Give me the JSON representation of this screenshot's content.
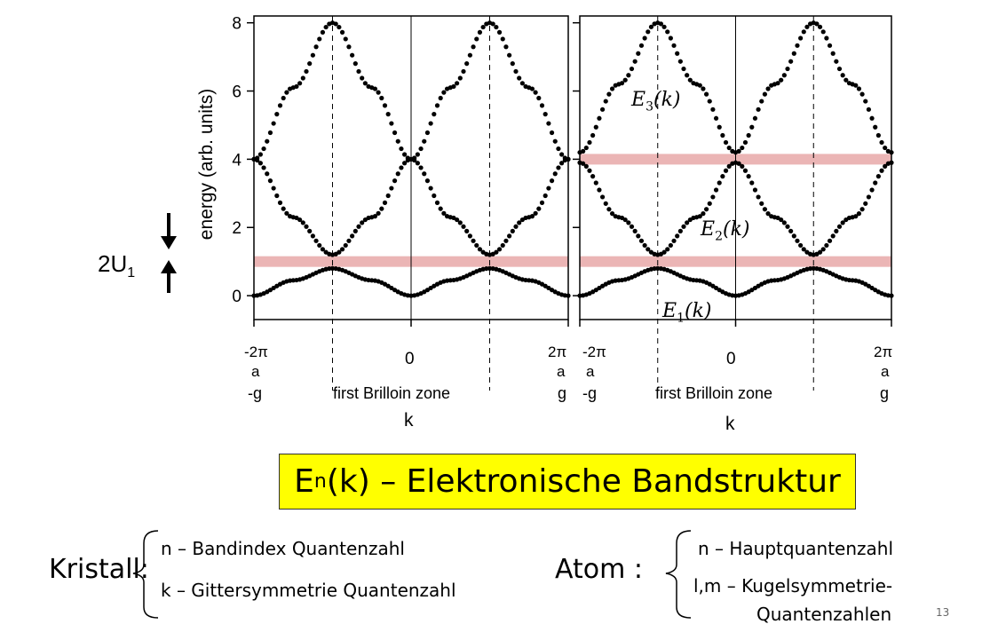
{
  "chart_data": [
    {
      "type": "scatter",
      "panel": "left",
      "ylabel": "energy (arb. units)",
      "xlabel": "k",
      "x_zone_label": "first Brilloin zone",
      "ylim": [
        -0.7,
        8.2
      ],
      "yticks": [
        "0",
        "2",
        "4",
        "6",
        "8"
      ],
      "xticks": [
        {
          "top": "-2π",
          "bottom": "a",
          "extra": "-g"
        },
        {
          "top": "0",
          "bottom": "",
          "extra": ""
        },
        {
          "top": "2π",
          "bottom": "a",
          "extra": "g"
        }
      ],
      "gap_annotation": "2U",
      "gap_annotation_sub": "1",
      "band_gap_highlights": [
        1.0
      ],
      "series": [
        {
          "band": 1,
          "x": [
            -1,
            -0.75,
            -0.5,
            -0.25,
            0,
            0.25,
            0.5,
            0.75,
            1
          ],
          "y": [
            0,
            0.45,
            0.8,
            0.45,
            0,
            0.45,
            0.8,
            0.45,
            0
          ]
        },
        {
          "band": 2,
          "x": [
            -1,
            -0.75,
            -0.5,
            -0.25,
            0,
            0.25,
            0.5,
            0.75,
            1
          ],
          "y": [
            4,
            2.3,
            1.2,
            2.3,
            4,
            2.3,
            1.2,
            2.3,
            4
          ]
        },
        {
          "band": 3,
          "x": [
            -1,
            -0.75,
            -0.5,
            -0.25,
            0,
            0.25,
            0.5,
            0.75,
            1
          ],
          "y": [
            4,
            6.1,
            8,
            6.1,
            4,
            6.1,
            8,
            6.1,
            4
          ]
        }
      ]
    },
    {
      "type": "scatter",
      "panel": "right",
      "xlabel": "k",
      "x_zone_label": "first Brilloin zone",
      "ylim": [
        -0.7,
        8.2
      ],
      "xticks": [
        {
          "top": "-2π",
          "bottom": "a",
          "extra": "-g"
        },
        {
          "top": "0",
          "bottom": "",
          "extra": ""
        },
        {
          "top": "2π",
          "bottom": "a",
          "extra": "g"
        }
      ],
      "band_gap_highlights": [
        1.0,
        4.0
      ],
      "band_labels": [
        {
          "name": "E",
          "sub": "1",
          "arg": "(k)"
        },
        {
          "name": "E",
          "sub": "2",
          "arg": "(k)"
        },
        {
          "name": "E",
          "sub": "3",
          "arg": "(k)"
        }
      ],
      "series": [
        {
          "band": 1,
          "x": [
            -1,
            -0.75,
            -0.5,
            -0.25,
            0,
            0.25,
            0.5,
            0.75,
            1
          ],
          "y": [
            0,
            0.45,
            0.8,
            0.45,
            0,
            0.45,
            0.8,
            0.45,
            0
          ]
        },
        {
          "band": 2,
          "x": [
            -1,
            -0.75,
            -0.5,
            -0.25,
            0,
            0.25,
            0.5,
            0.75,
            1
          ],
          "y": [
            3.9,
            2.3,
            1.2,
            2.3,
            3.9,
            2.3,
            1.2,
            2.3,
            3.9
          ]
        },
        {
          "band": 3,
          "x": [
            -1,
            -0.75,
            -0.5,
            -0.25,
            0,
            0.25,
            0.5,
            0.75,
            1
          ],
          "y": [
            4.2,
            6.2,
            8,
            6.2,
            4.2,
            6.2,
            8,
            6.2,
            4.2
          ]
        }
      ]
    }
  ],
  "banner": {
    "prefix": "E",
    "sub": "n",
    "rest": "(k) – Elektronische Bandstruktur"
  },
  "kristall": {
    "label": "Kristall:",
    "line1": "n – Bandindex Quantenzahl",
    "line2": "k – Gittersymmetrie Quantenzahl"
  },
  "atom": {
    "label": "Atom :",
    "line1": "n – Hauptquantenzahl",
    "line2": "l,m – Kugelsymmetrie-",
    "line3": "Quantenzahlen"
  },
  "page_number": "13",
  "colors": {
    "highlight": "#e8a8a8",
    "banner_bg": "#ffff00",
    "dots": "#000000"
  }
}
